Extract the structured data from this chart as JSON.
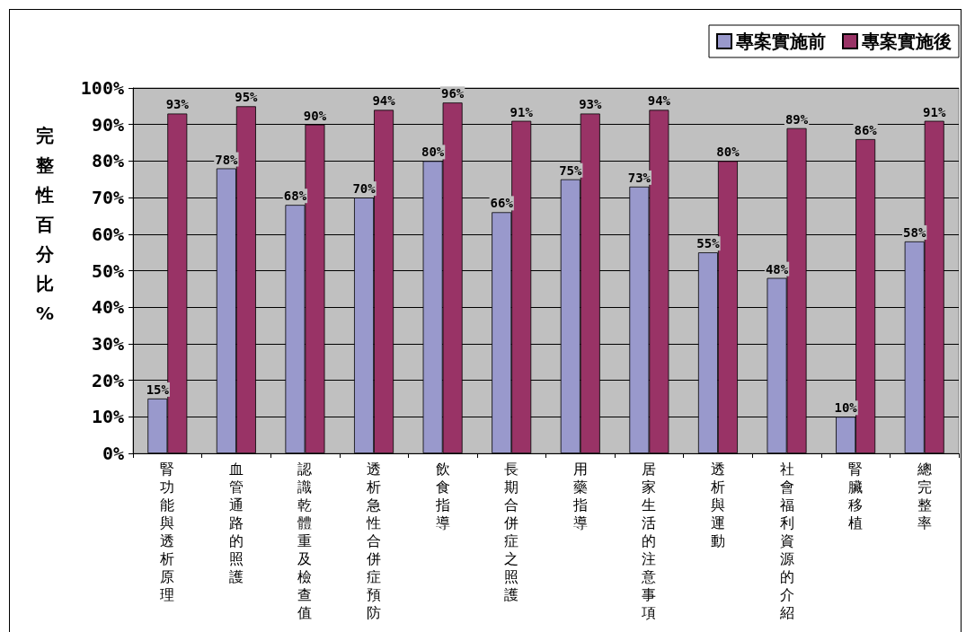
{
  "chart_data": {
    "type": "bar",
    "ylabel": "完整性百分比%",
    "categories": [
      "腎功能與透析原理",
      "血管通路的照護",
      "認識乾體重及檢查值",
      "透析急性合併症預防",
      "飲食指導",
      "長期合併症之照護",
      "用藥指導",
      "居家生活的注意事項",
      "透析與運動",
      "社會福利資源的介紹",
      "腎臟移植",
      "總完整率"
    ],
    "series": [
      {
        "name": "專案實施前",
        "color": "#9999cc",
        "values": [
          15,
          78,
          68,
          70,
          80,
          66,
          75,
          73,
          55,
          48,
          10,
          58
        ],
        "value_labels": [
          "15%",
          "78%",
          "68%",
          "70%",
          "80%",
          "66%",
          "75%",
          "73%",
          "55%",
          "48%",
          "10%",
          "58%"
        ]
      },
      {
        "name": "專案實施後",
        "color": "#993366",
        "values": [
          93,
          95,
          90,
          94,
          96,
          91,
          93,
          94,
          80,
          89,
          86,
          91
        ],
        "value_labels": [
          "93%",
          "95%",
          "90%",
          "94%",
          "96%",
          "91%",
          "93%",
          "94%",
          "80%",
          "89%",
          "86%",
          "91%"
        ]
      }
    ],
    "ylim": [
      0,
      100
    ],
    "yticks": [
      {
        "value": 0,
        "label": "0%"
      },
      {
        "value": 10,
        "label": "10%"
      },
      {
        "value": 20,
        "label": "20%"
      },
      {
        "value": 30,
        "label": "30%"
      },
      {
        "value": 40,
        "label": "40%"
      },
      {
        "value": 50,
        "label": "50%"
      },
      {
        "value": 60,
        "label": "60%"
      },
      {
        "value": 70,
        "label": "70%"
      },
      {
        "value": 80,
        "label": "80%"
      },
      {
        "value": 90,
        "label": "90%"
      },
      {
        "value": 100,
        "label": "100%"
      }
    ],
    "grid": "y",
    "legend": "top right"
  }
}
